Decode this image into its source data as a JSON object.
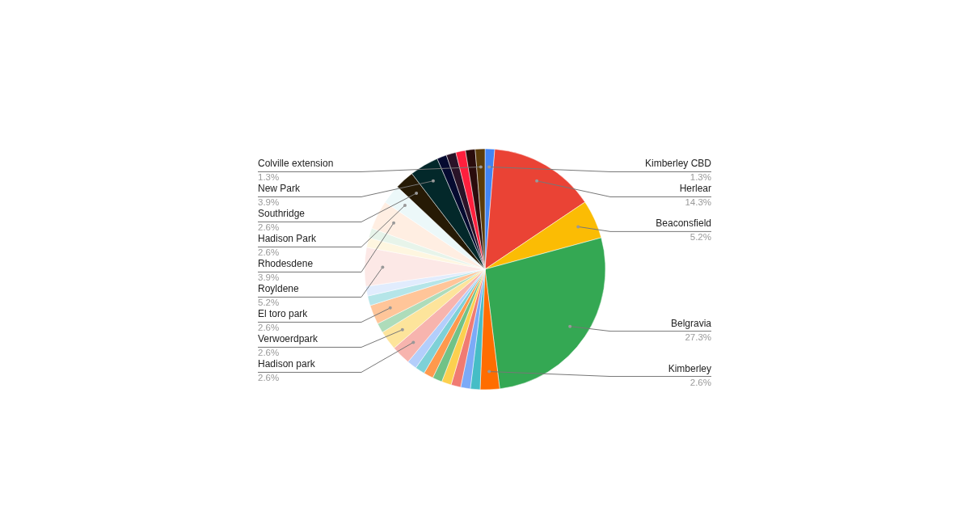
{
  "chart_data": {
    "type": "pie",
    "categories": [
      "Kimberley CBD",
      "Herlear",
      "Beaconsfield",
      "Belgravia",
      "Kimberley",
      null,
      null,
      null,
      null,
      null,
      null,
      null,
      null,
      "Hadison park",
      "Verwoerdpark",
      null,
      "El toro park",
      null,
      null,
      "Royldene",
      null,
      null,
      "Rhodesdene",
      "Hadison Park",
      "Southridge",
      "New Park",
      null,
      null,
      null,
      null,
      "Colville extension"
    ],
    "values": [
      1.3,
      14.3,
      5.2,
      27.3,
      2.6,
      1.3,
      1.3,
      1.3,
      1.3,
      1.3,
      1.3,
      1.3,
      1.3,
      2.6,
      2.6,
      1.3,
      2.6,
      1.3,
      1.3,
      5.2,
      1.3,
      1.3,
      3.9,
      2.6,
      2.6,
      3.9,
      1.3,
      1.3,
      1.3,
      1.3,
      1.3
    ],
    "value_labels": [
      "1.3%",
      "14.3%",
      "5.2%",
      "27.3%",
      "2.6%",
      null,
      null,
      null,
      null,
      null,
      null,
      null,
      null,
      "2.6%",
      "2.6%",
      null,
      "2.6%",
      null,
      null,
      "5.2%",
      null,
      null,
      "3.9%",
      "2.6%",
      "2.6%",
      "3.9%",
      null,
      null,
      null,
      null,
      "1.3%"
    ],
    "colors": [
      "#4285f4",
      "#ea4335",
      "#fbbc04",
      "#34a853",
      "#ff6d01",
      "#46bdc6",
      "#7baaf7",
      "#f07b72",
      "#fcd04f",
      "#71c287",
      "#ff994d",
      "#7ed1d7",
      "#b3cefb",
      "#f7b4ae",
      "#fde49b",
      "#aedcba",
      "#ffc599",
      "#b5e5e8",
      "#e1ecfd",
      "#fce8e6",
      "#fef6e0",
      "#e7f4ea",
      "#ffeee2",
      "#ecf8f9",
      "#261a05",
      "#03282a",
      "#050a30",
      "#2a1328",
      "#ff1f3d",
      "#2a0c0c",
      "#5b3c0a"
    ]
  }
}
